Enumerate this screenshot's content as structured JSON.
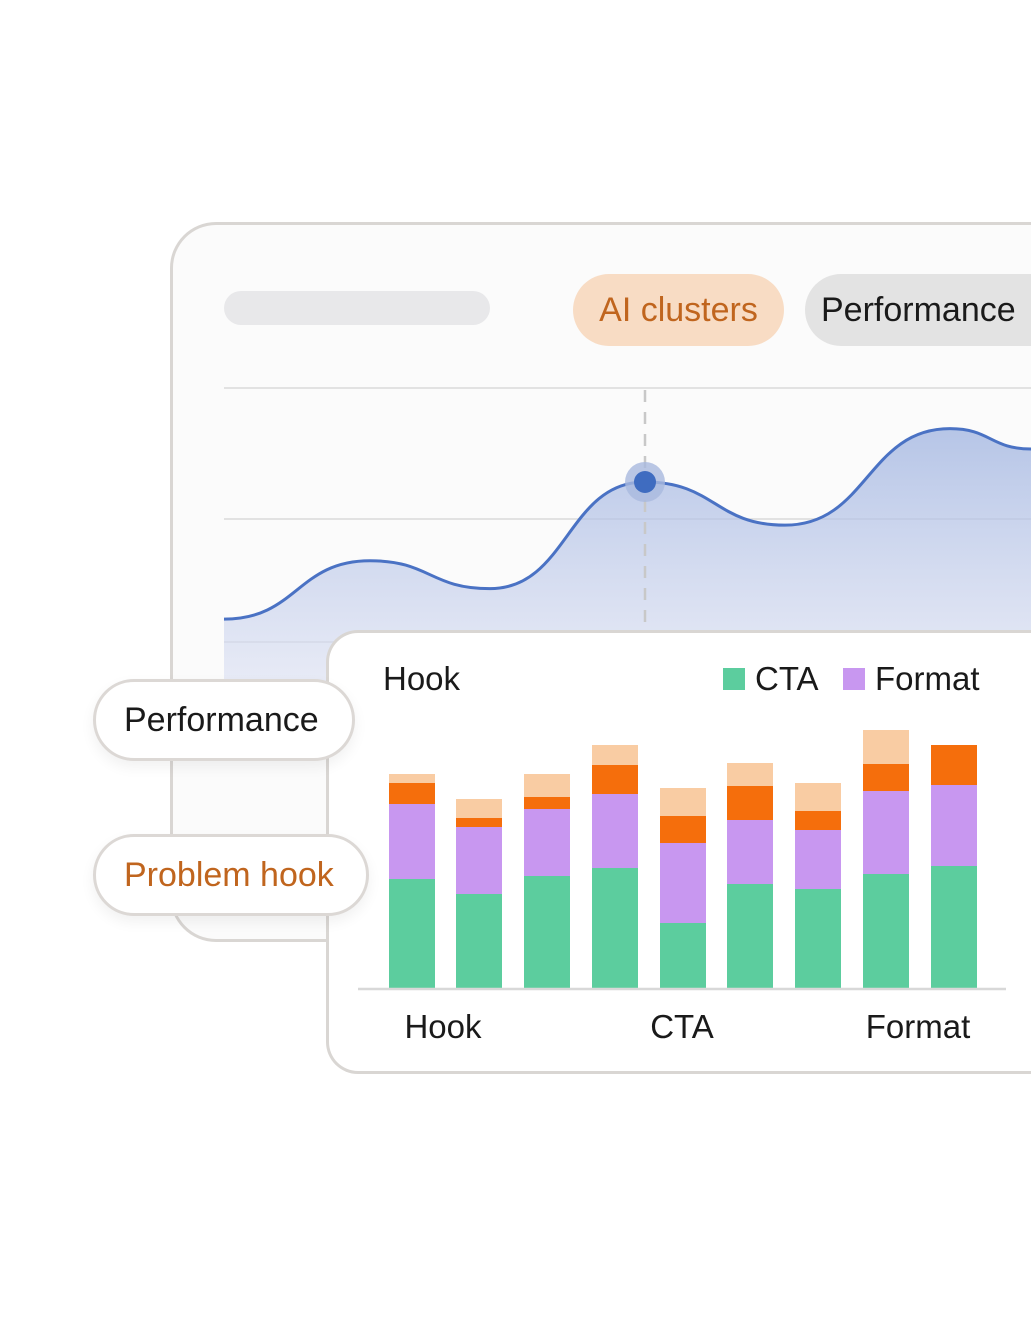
{
  "header": {
    "tabs": [
      {
        "label": "AI clusters",
        "active": true
      },
      {
        "label": "Performance",
        "active": false
      }
    ]
  },
  "side_pills": [
    {
      "label": "Performance"
    },
    {
      "label": "Problem hook"
    }
  ],
  "colors": {
    "accent_orange_text": "#c0651e",
    "accent_orange_bg": "#f8dcc4",
    "line": "#4a72c4",
    "cta": "#5ccd9e",
    "format": "#c897f0",
    "hook_dark": "#f56e0c",
    "hook_light": "#f9cca3"
  },
  "chart_data": [
    {
      "type": "area",
      "x": [
        0,
        1,
        2,
        3,
        4,
        5,
        6
      ],
      "values": [
        9,
        32,
        21,
        63,
        46,
        84,
        76
      ],
      "highlight_index": 3,
      "grid": true,
      "ylim": [
        0,
        100
      ]
    },
    {
      "type": "bar",
      "stacked": true,
      "title": "Hook",
      "legend": [
        "CTA",
        "Format"
      ],
      "legend_position": "top-right",
      "x_tick_labels": [
        "Hook",
        "CTA",
        "Format"
      ],
      "categories": [
        1,
        2,
        3,
        4,
        5,
        6,
        7,
        8,
        9
      ],
      "series": [
        {
          "name": "CTA",
          "color": "#5ccd9e",
          "values": [
            109,
            94,
            112,
            120,
            65,
            104,
            99,
            114,
            122
          ]
        },
        {
          "name": "Format",
          "color": "#c897f0",
          "values": [
            75,
            67,
            67,
            74,
            80,
            64,
            59,
            83,
            81
          ]
        },
        {
          "color": "#f56e0c",
          "values": [
            21,
            9,
            12,
            29,
            27,
            34,
            19,
            27,
            40
          ]
        },
        {
          "color": "#f9cca3",
          "values": [
            9,
            19,
            23,
            20,
            28,
            23,
            28,
            34,
            0
          ]
        }
      ],
      "ylim": [
        0,
        260
      ]
    }
  ]
}
